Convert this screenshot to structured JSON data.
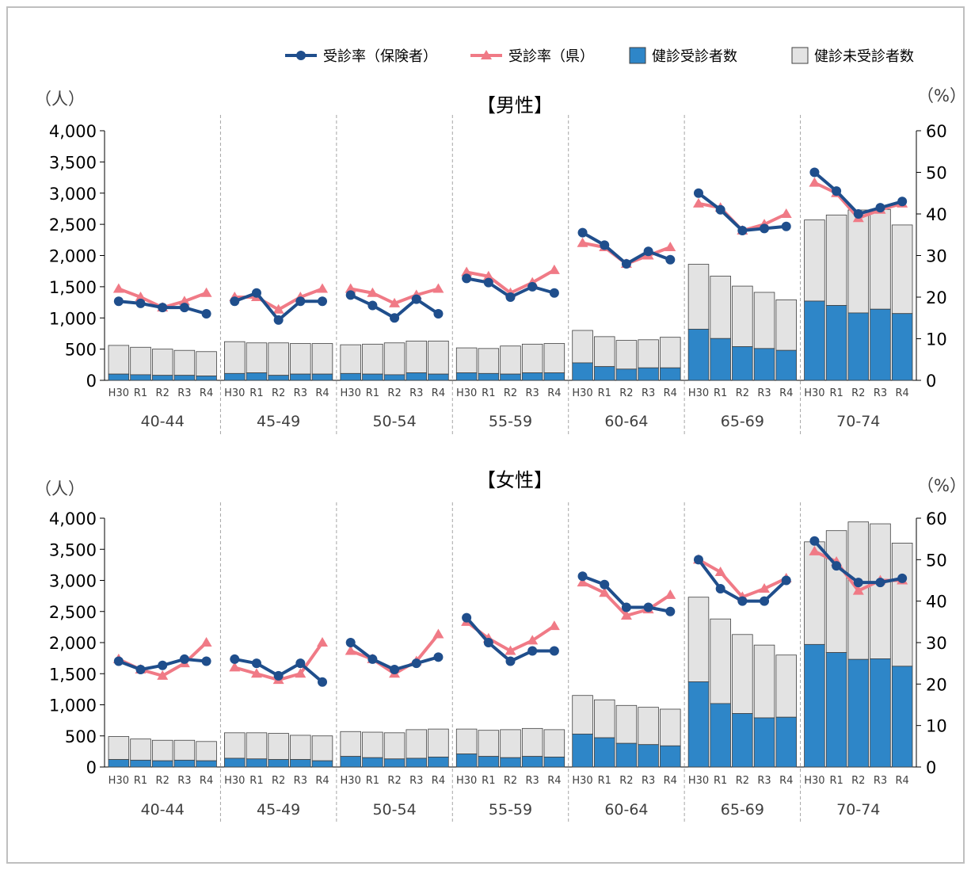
{
  "legend": {
    "rate_insurer": "受診率（保険者）",
    "rate_pref": "受診率（県）",
    "examined": "健診受診者数",
    "not_examined": "健診未受診者数"
  },
  "colors": {
    "rate_insurer": "#1f4e8c",
    "rate_pref": "#f07a86",
    "examined": "#2e86c8",
    "not_examined": "#e3e3e3",
    "bar_stroke": "#404040",
    "divider": "#a6a6a6"
  },
  "chart_data": [
    {
      "type": "bar",
      "title": "【男性】",
      "left_axis_unit": "（人）",
      "right_axis_unit": "（%）",
      "left_ticks": [
        "0",
        "500",
        "1,000",
        "1,500",
        "2,000",
        "2,500",
        "3,000",
        "3,500",
        "4,000"
      ],
      "right_ticks": [
        "0",
        "10",
        "20",
        "30",
        "40",
        "50",
        "60"
      ],
      "ylim_left": [
        0,
        4000
      ],
      "ylim_right": [
        0,
        60
      ],
      "years": [
        "H30",
        "R1",
        "R2",
        "R3",
        "R4"
      ],
      "groups": [
        {
          "label": "40-44",
          "examined": [
            100,
            90,
            80,
            80,
            70
          ],
          "not_examined": [
            460,
            440,
            420,
            400,
            390
          ],
          "rate_insurer": [
            19,
            18.5,
            17.5,
            17.5,
            16
          ],
          "rate_pref": [
            22,
            20,
            17.5,
            19,
            21
          ]
        },
        {
          "label": "45-49",
          "examined": [
            110,
            120,
            80,
            100,
            100
          ],
          "not_examined": [
            510,
            480,
            520,
            490,
            490
          ],
          "rate_insurer": [
            19,
            21,
            14.5,
            19,
            19
          ],
          "rate_pref": [
            20,
            20,
            17,
            20,
            22
          ]
        },
        {
          "label": "50-54",
          "examined": [
            110,
            100,
            90,
            120,
            100
          ],
          "not_examined": [
            460,
            480,
            510,
            510,
            530
          ],
          "rate_insurer": [
            20.5,
            18,
            15,
            19.5,
            16
          ],
          "rate_pref": [
            22,
            21,
            18.5,
            20.5,
            22
          ]
        },
        {
          "label": "55-59",
          "examined": [
            120,
            110,
            100,
            120,
            120
          ],
          "not_examined": [
            400,
            400,
            450,
            460,
            470
          ],
          "rate_insurer": [
            24.5,
            23.5,
            20,
            22.5,
            21
          ],
          "rate_pref": [
            26,
            25,
            21,
            23.5,
            26.5
          ]
        },
        {
          "label": "60-64",
          "examined": [
            280,
            220,
            180,
            200,
            200
          ],
          "not_examined": [
            520,
            480,
            460,
            450,
            490
          ],
          "rate_insurer": [
            35.5,
            32.5,
            28,
            31,
            29
          ],
          "rate_pref": [
            33,
            32,
            28,
            30,
            32
          ]
        },
        {
          "label": "65-69",
          "examined": [
            820,
            670,
            540,
            510,
            480
          ],
          "not_examined": [
            1040,
            1000,
            970,
            900,
            810
          ],
          "rate_insurer": [
            45,
            41,
            36,
            36.5,
            37
          ],
          "rate_pref": [
            42.5,
            41.5,
            36,
            37.5,
            40
          ]
        },
        {
          "label": "70-74",
          "examined": [
            1270,
            1200,
            1080,
            1140,
            1070
          ],
          "not_examined": [
            1300,
            1450,
            1650,
            1600,
            1420
          ],
          "rate_insurer": [
            50,
            45.5,
            40,
            41.5,
            43
          ],
          "rate_pref": [
            47.5,
            45,
            39,
            41,
            42.5
          ]
        }
      ]
    },
    {
      "type": "bar",
      "title": "【女性】",
      "left_axis_unit": "（人）",
      "right_axis_unit": "（%）",
      "left_ticks": [
        "0",
        "500",
        "1,000",
        "1,500",
        "2,000",
        "2,500",
        "3,000",
        "3,500",
        "4,000"
      ],
      "right_ticks": [
        "0",
        "10",
        "20",
        "30",
        "40",
        "50",
        "60"
      ],
      "ylim_left": [
        0,
        4000
      ],
      "ylim_right": [
        0,
        60
      ],
      "years": [
        "H30",
        "R1",
        "R2",
        "R3",
        "R4"
      ],
      "groups": [
        {
          "label": "40-44",
          "examined": [
            120,
            110,
            100,
            110,
            100
          ],
          "not_examined": [
            370,
            340,
            330,
            320,
            310
          ],
          "rate_insurer": [
            25.5,
            23.5,
            24.5,
            26,
            25.5
          ],
          "rate_pref": [
            26,
            23.5,
            22,
            25,
            30
          ]
        },
        {
          "label": "45-49",
          "examined": [
            140,
            130,
            120,
            120,
            100
          ],
          "not_examined": [
            410,
            420,
            420,
            390,
            400
          ],
          "rate_insurer": [
            26,
            25,
            22,
            25,
            20.5
          ],
          "rate_pref": [
            24,
            22.5,
            21,
            22.5,
            30
          ]
        },
        {
          "label": "50-54",
          "examined": [
            170,
            150,
            130,
            140,
            160
          ],
          "not_examined": [
            400,
            410,
            420,
            460,
            450
          ],
          "rate_insurer": [
            30,
            26,
            23.5,
            25,
            26.5
          ],
          "rate_pref": [
            28,
            26,
            22.5,
            25.5,
            32
          ]
        },
        {
          "label": "55-59",
          "examined": [
            210,
            170,
            150,
            170,
            160
          ],
          "not_examined": [
            400,
            420,
            450,
            450,
            440
          ],
          "rate_insurer": [
            36,
            30,
            25.5,
            28,
            28
          ],
          "rate_pref": [
            35,
            31,
            28,
            30.5,
            34
          ]
        },
        {
          "label": "60-64",
          "examined": [
            530,
            470,
            380,
            360,
            340
          ],
          "not_examined": [
            620,
            610,
            610,
            600,
            590
          ],
          "rate_insurer": [
            46,
            44,
            38.5,
            38.5,
            37.5
          ],
          "rate_pref": [
            44.5,
            42,
            36.5,
            38,
            41.5
          ]
        },
        {
          "label": "65-69",
          "examined": [
            1370,
            1020,
            860,
            790,
            800
          ],
          "not_examined": [
            1360,
            1360,
            1270,
            1170,
            1000
          ],
          "rate_insurer": [
            50,
            43,
            40,
            40,
            45
          ],
          "rate_pref": [
            50,
            47,
            41,
            43,
            45.5
          ]
        },
        {
          "label": "70-74",
          "examined": [
            1970,
            1840,
            1730,
            1740,
            1620
          ],
          "not_examined": [
            1650,
            1960,
            2210,
            2170,
            1980
          ],
          "rate_insurer": [
            54.5,
            48.5,
            44.5,
            44.5,
            45.5
          ],
          "rate_pref": [
            52,
            49.5,
            42.5,
            45,
            45
          ]
        }
      ]
    }
  ]
}
